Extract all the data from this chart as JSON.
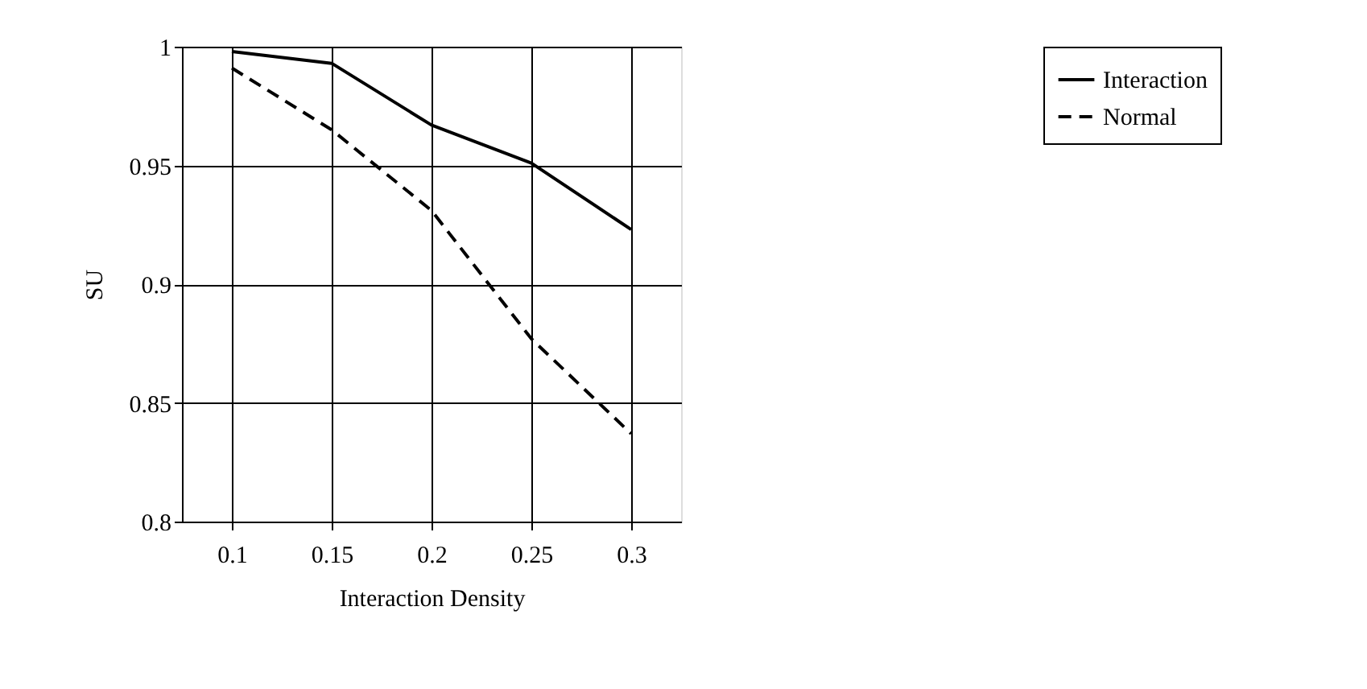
{
  "chart_data": {
    "type": "line",
    "xlabel": "Interaction Density",
    "ylabel": "SU",
    "categories": [
      "0.1",
      "0.15",
      "0.2",
      "0.25",
      "0.3"
    ],
    "series": [
      {
        "name": "Interaction",
        "color": "#000000",
        "line_style": "solid",
        "values": [
          0.998,
          0.993,
          0.967,
          0.951,
          0.923
        ]
      },
      {
        "name": "Normal",
        "color": "#000000",
        "line_style": "dashed",
        "values": [
          0.991,
          0.965,
          0.931,
          0.877,
          0.837
        ]
      }
    ],
    "ylim": [
      0.8,
      1
    ],
    "yticks": [
      0.8,
      0.85,
      0.9,
      0.95,
      1
    ],
    "grid": true,
    "legend": "right",
    "marker": "none"
  }
}
